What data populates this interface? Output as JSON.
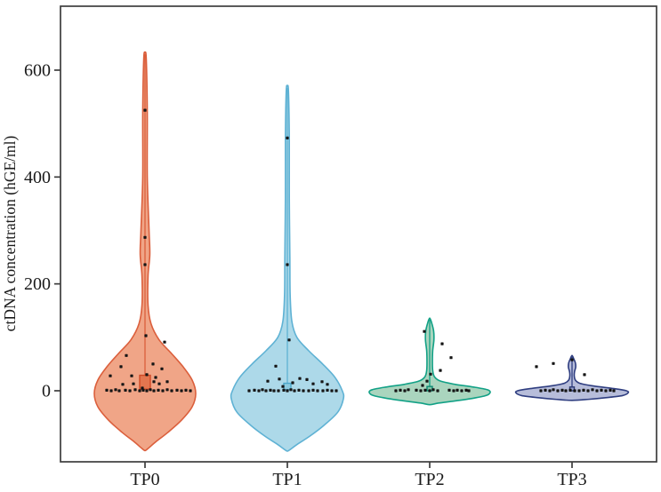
{
  "figure": {
    "background": "#ffffff"
  },
  "chart_data": {
    "type": "violin",
    "title": "",
    "xlabel": "",
    "ylabel": "ctDNA concentration (hGE/ml)",
    "categories": [
      "TP0",
      "TP1",
      "TP2",
      "TP3"
    ],
    "y_ticks": [
      0,
      200,
      400,
      600
    ],
    "ylim": [
      -130,
      700
    ],
    "grid": false,
    "legend": "none",
    "colors": {
      "point": "#151515",
      "frame": "#3d3d3d",
      "text": "#1a1a1a"
    },
    "series": [
      {
        "name": "TP0",
        "fill": "#EFA081",
        "stroke": "#DB5F3C",
        "max_value": 633,
        "min_value": -111,
        "max_halfwidth": 57,
        "profile": [
          [
            633,
            0.0
          ],
          [
            620,
            0.025
          ],
          [
            520,
            0.045
          ],
          [
            400,
            0.045
          ],
          [
            300,
            0.08
          ],
          [
            255,
            0.095
          ],
          [
            215,
            0.06
          ],
          [
            160,
            0.06
          ],
          [
            125,
            0.12
          ],
          [
            95,
            0.28
          ],
          [
            70,
            0.52
          ],
          [
            45,
            0.75
          ],
          [
            20,
            0.93
          ],
          [
            -5,
            1.0
          ],
          [
            -30,
            0.93
          ],
          [
            -55,
            0.72
          ],
          [
            -78,
            0.45
          ],
          [
            -95,
            0.22
          ],
          [
            -108,
            0.06
          ],
          [
            -112,
            0.0
          ]
        ],
        "center_line": {
          "top": 630,
          "bottom": 29
        },
        "box": {
          "lo": 3,
          "hi": 29,
          "halfwidth": 6,
          "fill": "#E4764F",
          "stroke": "#D04A26"
        },
        "points": [
          [
            0,
            525
          ],
          [
            0,
            287
          ],
          [
            0,
            236
          ],
          [
            1,
            103
          ],
          [
            22,
            91
          ],
          [
            -21,
            66
          ],
          [
            9,
            50
          ],
          [
            -27,
            45
          ],
          [
            19,
            41
          ],
          [
            -39,
            28
          ],
          [
            -15,
            28
          ],
          [
            2,
            30
          ],
          [
            12,
            25
          ],
          [
            -13,
            13
          ],
          [
            -25,
            12
          ],
          [
            10,
            17
          ],
          [
            16,
            13
          ],
          [
            25,
            17
          ],
          [
            -3,
            5
          ],
          [
            -43,
            1
          ],
          [
            -38,
            0
          ],
          [
            -33,
            2
          ],
          [
            -29,
            0
          ],
          [
            -22,
            1
          ],
          [
            -17,
            0
          ],
          [
            -11,
            2
          ],
          [
            -6,
            0
          ],
          [
            -2,
            1
          ],
          [
            2,
            0
          ],
          [
            6,
            2
          ],
          [
            10,
            0
          ],
          [
            15,
            1
          ],
          [
            20,
            0
          ],
          [
            25,
            2
          ],
          [
            30,
            0
          ],
          [
            36,
            1
          ],
          [
            41,
            0
          ],
          [
            46,
            1
          ],
          [
            51,
            0
          ]
        ]
      },
      {
        "name": "TP1",
        "fill": "#A9D7E8",
        "stroke": "#5FB2D4",
        "max_value": 570,
        "min_value": -113,
        "max_halfwidth": 63,
        "profile": [
          [
            570,
            0.0
          ],
          [
            560,
            0.02
          ],
          [
            470,
            0.035
          ],
          [
            360,
            0.035
          ],
          [
            250,
            0.045
          ],
          [
            180,
            0.05
          ],
          [
            130,
            0.08
          ],
          [
            100,
            0.17
          ],
          [
            75,
            0.38
          ],
          [
            50,
            0.63
          ],
          [
            25,
            0.85
          ],
          [
            0,
            0.98
          ],
          [
            -15,
            1.0
          ],
          [
            -40,
            0.9
          ],
          [
            -65,
            0.65
          ],
          [
            -85,
            0.4
          ],
          [
            -100,
            0.18
          ],
          [
            -110,
            0.05
          ],
          [
            -113,
            0.0
          ]
        ],
        "center_line": {
          "top": 567,
          "bottom": 14
        },
        "box": {
          "lo": 2,
          "hi": 14,
          "halfwidth": 4,
          "fill": "#8CCADF",
          "stroke": "#4BA7C9"
        },
        "points": [
          [
            0,
            473
          ],
          [
            0,
            236
          ],
          [
            2,
            95
          ],
          [
            -13,
            46
          ],
          [
            -22,
            18
          ],
          [
            -9,
            22
          ],
          [
            6,
            15
          ],
          [
            14,
            23
          ],
          [
            22,
            21
          ],
          [
            29,
            13
          ],
          [
            39,
            17
          ],
          [
            45,
            12
          ],
          [
            -5,
            8
          ],
          [
            -43,
            0
          ],
          [
            -37,
            1
          ],
          [
            -32,
            0
          ],
          [
            -28,
            2
          ],
          [
            -24,
            0
          ],
          [
            -19,
            1
          ],
          [
            -15,
            0
          ],
          [
            -10,
            0
          ],
          [
            -4,
            1
          ],
          [
            0,
            0
          ],
          [
            4,
            2
          ],
          [
            8,
            0
          ],
          [
            13,
            1
          ],
          [
            18,
            0
          ],
          [
            24,
            0
          ],
          [
            29,
            1
          ],
          [
            34,
            0
          ],
          [
            40,
            0
          ],
          [
            45,
            1
          ],
          [
            50,
            0
          ],
          [
            55,
            0
          ]
        ]
      },
      {
        "name": "TP2",
        "fill": "#A5D3BA",
        "stroke": "#12A186",
        "max_value": 136,
        "min_value": -26,
        "max_halfwidth": 68,
        "profile": [
          [
            136,
            0.0
          ],
          [
            128,
            0.03
          ],
          [
            112,
            0.065
          ],
          [
            95,
            0.07
          ],
          [
            75,
            0.05
          ],
          [
            55,
            0.045
          ],
          [
            38,
            0.05
          ],
          [
            26,
            0.08
          ],
          [
            18,
            0.18
          ],
          [
            12,
            0.42
          ],
          [
            7,
            0.72
          ],
          [
            2,
            0.95
          ],
          [
            -3,
            1.0
          ],
          [
            -9,
            0.93
          ],
          [
            -14,
            0.72
          ],
          [
            -19,
            0.42
          ],
          [
            -23,
            0.15
          ],
          [
            -26,
            0.0
          ]
        ],
        "center_line": {
          "top": 133,
          "bottom": 8
        },
        "box": {
          "lo": 0,
          "hi": 8,
          "halfwidth": 3,
          "fill": "#7FC4A6",
          "stroke": "#0E8A73"
        },
        "points": [
          [
            -6,
            111
          ],
          [
            14,
            88
          ],
          [
            24,
            62
          ],
          [
            12,
            38
          ],
          [
            1,
            31
          ],
          [
            -3,
            18
          ],
          [
            -8,
            10
          ],
          [
            -38,
            0
          ],
          [
            -33,
            1
          ],
          [
            -28,
            0
          ],
          [
            -24,
            2
          ],
          [
            -15,
            1
          ],
          [
            -10,
            0
          ],
          [
            -5,
            1
          ],
          [
            0,
            0
          ],
          [
            4,
            2
          ],
          [
            9,
            0
          ],
          [
            22,
            1
          ],
          [
            27,
            0
          ],
          [
            31,
            1
          ],
          [
            36,
            0
          ],
          [
            41,
            1
          ],
          [
            44,
            0
          ]
        ]
      },
      {
        "name": "TP3",
        "fill": "#B3B9D8",
        "stroke": "#2F3E80",
        "max_value": 66,
        "min_value": -18,
        "max_halfwidth": 63,
        "profile": [
          [
            66,
            0.0
          ],
          [
            60,
            0.03
          ],
          [
            52,
            0.06
          ],
          [
            44,
            0.065
          ],
          [
            36,
            0.045
          ],
          [
            28,
            0.04
          ],
          [
            20,
            0.06
          ],
          [
            14,
            0.14
          ],
          [
            9,
            0.38
          ],
          [
            4,
            0.75
          ],
          [
            0,
            0.97
          ],
          [
            -4,
            1.0
          ],
          [
            -9,
            0.9
          ],
          [
            -13,
            0.6
          ],
          [
            -16,
            0.3
          ],
          [
            -18,
            0.0
          ]
        ],
        "center_line": {
          "top": 63,
          "bottom": 7
        },
        "box": {
          "lo": 0,
          "hi": 7,
          "halfwidth": 2.5,
          "fill": "#9AA3CC",
          "stroke": "#293670"
        },
        "points": [
          [
            -40,
            45
          ],
          [
            -21,
            51
          ],
          [
            14,
            30
          ],
          [
            0,
            58
          ],
          [
            -35,
            0
          ],
          [
            -30,
            1
          ],
          [
            -25,
            0
          ],
          [
            -21,
            2
          ],
          [
            -16,
            0
          ],
          [
            -11,
            1
          ],
          [
            -7,
            0
          ],
          [
            -2,
            1
          ],
          [
            3,
            0
          ],
          [
            8,
            0
          ],
          [
            13,
            1
          ],
          [
            18,
            0
          ],
          [
            23,
            2
          ],
          [
            28,
            0
          ],
          [
            33,
            1
          ],
          [
            38,
            0
          ],
          [
            43,
            1
          ],
          [
            47,
            0
          ]
        ]
      }
    ]
  }
}
